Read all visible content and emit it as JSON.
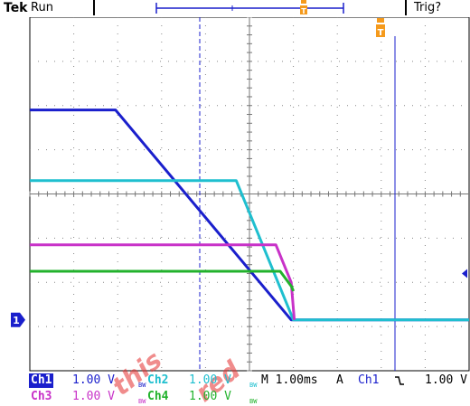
{
  "header": {
    "brand": "Tek",
    "acquisition_state": "Run",
    "trigger_status": "Trig?"
  },
  "markers": {
    "trigger_marker": "T",
    "ground_marker_ch1": "1"
  },
  "readout": {
    "ch1": {
      "label": "Ch1",
      "scale": "1.00 V",
      "color": "#1a1fcc"
    },
    "ch2": {
      "label": "Ch2",
      "scale": "1.00 V",
      "color": "#1fbfcf"
    },
    "ch3": {
      "label": "Ch3",
      "scale": "1.00 V",
      "color": "#c832c8"
    },
    "ch4": {
      "label": "Ch4",
      "scale": "1.00 V",
      "color": "#22b22c"
    },
    "bw_flag": "BW",
    "timebase": "M 1.00ms",
    "trigger_mode": "A",
    "trigger_source": "Ch1",
    "trigger_slope": "falling",
    "trigger_level": "1.00 V"
  },
  "watermark": {
    "line1": "this",
    "line2": "red"
  },
  "chart_data": {
    "type": "line",
    "title": "",
    "xlabel": "",
    "ylabel": "",
    "x_unit": "ms",
    "y_unit": "V",
    "xlim": [
      -3.9,
      6.1
    ],
    "ylim": [
      -1.2,
      6.8
    ],
    "series": [
      {
        "name": "Ch1",
        "color": "#1a1fcc",
        "points": [
          [
            -3.9,
            4.7
          ],
          [
            -1.95,
            4.7
          ],
          [
            2.05,
            -0.05
          ],
          [
            2.15,
            -0.05
          ],
          [
            6.1,
            -0.05
          ]
        ]
      },
      {
        "name": "Ch2",
        "color": "#1fbfcf",
        "points": [
          [
            -3.9,
            3.1
          ],
          [
            0.8,
            3.1
          ],
          [
            2.1,
            -0.05
          ],
          [
            6.1,
            -0.05
          ]
        ]
      },
      {
        "name": "Ch3",
        "color": "#c832c8",
        "points": [
          [
            -3.9,
            1.65
          ],
          [
            1.7,
            1.65
          ],
          [
            2.05,
            0.8
          ],
          [
            2.12,
            -0.05
          ]
        ]
      },
      {
        "name": "Ch4",
        "color": "#22b22c",
        "points": [
          [
            -3.9,
            1.05
          ],
          [
            1.8,
            1.05
          ],
          [
            2.06,
            0.7
          ],
          [
            2.1,
            0.6
          ]
        ]
      }
    ]
  }
}
